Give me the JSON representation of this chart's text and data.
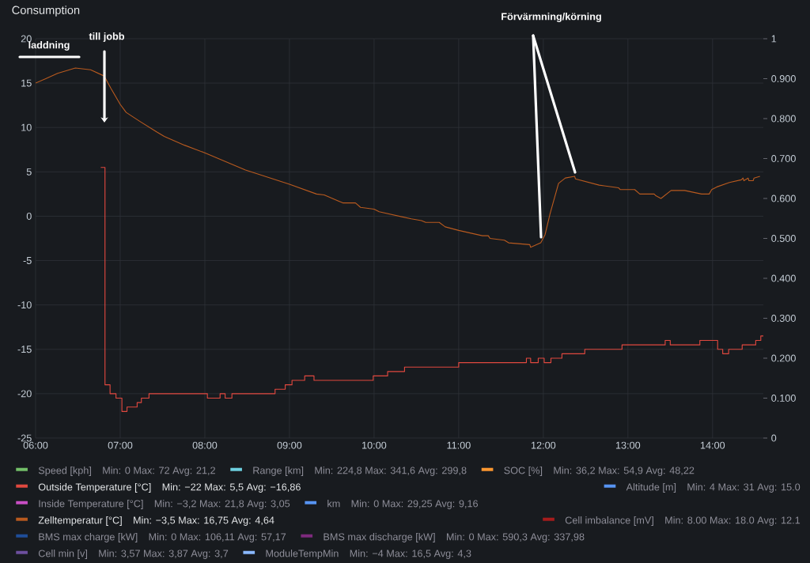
{
  "chart_data": {
    "type": "line",
    "title": "Consumption",
    "xlim": [
      6,
      14.6
    ],
    "xticks": [
      {
        "value": 6,
        "label": "06:00"
      },
      {
        "value": 7,
        "label": "07:00"
      },
      {
        "value": 8,
        "label": "08:00"
      },
      {
        "value": 9,
        "label": "09:00"
      },
      {
        "value": 10,
        "label": "10:00"
      },
      {
        "value": 11,
        "label": "11:00"
      },
      {
        "value": 12,
        "label": "12:00"
      },
      {
        "value": 13,
        "label": "13:00"
      },
      {
        "value": 14,
        "label": "14:00"
      }
    ],
    "ylim": [
      -25,
      20
    ],
    "yticks": [
      -25,
      -20,
      -15,
      -10,
      -5,
      0,
      5,
      10,
      15,
      20
    ],
    "y2lim": [
      0,
      1
    ],
    "y2ticks": [
      0,
      {
        "value": 0.1,
        "label": "0.100"
      },
      {
        "value": 0.2,
        "label": "0.200"
      },
      {
        "value": 0.3,
        "label": "0.300"
      },
      {
        "value": 0.4,
        "label": "0.400"
      },
      {
        "value": 0.5,
        "label": "0.500"
      },
      {
        "value": 0.6,
        "label": "0.600"
      },
      {
        "value": 0.7,
        "label": "0.700"
      },
      {
        "value": 0.8,
        "label": "0.800"
      },
      {
        "value": 0.9,
        "label": "0.900"
      },
      1
    ],
    "grid": true,
    "legend": "bottom",
    "series": [
      {
        "name": "Speed [kph]",
        "color": "#73bf69"
      },
      {
        "name": "Range [km]",
        "color": "#6ed0e0"
      },
      {
        "name": "SOC [%]",
        "color": "#ff9830"
      },
      {
        "name": "Outside Temperature [°C]",
        "color": "#e0483f",
        "type": "step",
        "x": [
          6.77,
          6.82,
          6.88,
          6.95,
          7.02,
          7.08,
          7.2,
          7.25,
          7.34,
          8.03,
          8.18,
          8.24,
          8.32,
          8.83,
          8.95,
          9.03,
          9.18,
          9.29,
          9.99,
          10.16,
          10.36,
          11.0,
          11.8,
          11.85,
          11.94,
          12.01,
          12.09,
          12.22,
          12.49,
          12.93,
          13.44,
          13.5,
          13.85,
          14.06,
          14.12,
          14.19,
          14.35,
          14.51,
          14.57,
          14.6
        ],
        "values": [
          5.5,
          -19,
          -20,
          -20.5,
          -22,
          -21.5,
          -21,
          -20.5,
          -20,
          -20.5,
          -20,
          -20.5,
          -20,
          -19.5,
          -19,
          -18.5,
          -18,
          -18.5,
          -18,
          -17.5,
          -17,
          -16.5,
          -16,
          -16.5,
          -16,
          -16.5,
          -16,
          -15.5,
          -15,
          -14.5,
          -14,
          -14.5,
          -14,
          -15,
          -15.5,
          -15,
          -14.5,
          -14,
          -13.5,
          -13.5
        ]
      },
      {
        "name": "Altitude [m]",
        "color": "#5794f2"
      },
      {
        "name": "Inside Temperature [°C]",
        "color": "#c94fc5"
      },
      {
        "name": "km",
        "color": "#5794f2"
      },
      {
        "name": "Zelltemperatur [°C]",
        "color": "#b85a1f",
        "x": [
          6.0,
          6.12,
          6.26,
          6.47,
          6.65,
          6.81,
          6.89,
          7.0,
          7.07,
          7.23,
          7.43,
          7.52,
          7.76,
          8.01,
          8.48,
          9.0,
          9.32,
          9.41,
          9.63,
          9.78,
          9.84,
          10.0,
          10.06,
          10.44,
          10.56,
          10.61,
          10.77,
          10.84,
          11.0,
          11.28,
          11.35,
          11.37,
          11.54,
          11.59,
          11.84,
          11.85,
          11.97,
          12.02,
          12.08,
          12.18,
          12.26,
          12.37,
          12.38,
          12.66,
          12.89,
          12.91,
          13.08,
          13.14,
          13.31,
          13.33,
          13.39,
          13.51,
          13.67,
          13.87,
          13.96,
          13.99,
          14.05,
          14.2,
          14.34,
          14.36,
          14.37,
          14.42,
          14.43,
          14.48,
          14.49,
          14.56
        ],
        "values": [
          15.0,
          15.5,
          16.1,
          16.7,
          16.5,
          15.8,
          14.4,
          12.6,
          11.7,
          10.7,
          9.5,
          9.0,
          8.0,
          7.1,
          5.2,
          3.6,
          2.5,
          2.4,
          1.5,
          1.5,
          1.0,
          0.8,
          0.5,
          -0.3,
          -0.5,
          -0.7,
          -0.7,
          -1.2,
          -1.6,
          -2.2,
          -2.2,
          -2.5,
          -2.7,
          -3.0,
          -3.2,
          -3.5,
          -3.0,
          -2.1,
          0.3,
          3.7,
          4.3,
          4.5,
          4.2,
          3.5,
          3.2,
          3.0,
          3.0,
          2.5,
          2.5,
          2.3,
          2.0,
          2.9,
          2.9,
          2.5,
          2.5,
          3.0,
          3.3,
          3.8,
          4.1,
          4.3,
          4.0,
          4.3,
          4.0,
          4.0,
          4.3,
          4.5
        ]
      },
      {
        "name": "Cell imbalance [mV]",
        "color": "#a51c1c"
      },
      {
        "name": "BMS max charge [kW]",
        "color": "#1f4e99"
      },
      {
        "name": "BMS max discharge [kW]",
        "color": "#7d2a7d"
      },
      {
        "name": "Cell min [v]",
        "color": "#6d4f9e"
      },
      {
        "name": "ModuleTempMin",
        "color": "#8ab8ff"
      }
    ],
    "annotations": [
      "laddning",
      "till jobb",
      "Förvärmning/körning",
      "Min: 0  Max: 72  Avg: 21,2",
      "Min: 224,8  Max: 341,6  Avg: 299,8",
      "Min: 36,2  Max: 54,9  Avg: 48,22",
      "Min: −22  Max: 5,5  Avg: −16,86",
      "Min: 4  Max: 31  Avg: 15.0",
      "Min: −3,2  Max: 21,8  Avg: 3,05",
      "Min: 0  Max: 29,25  Avg: 9,16",
      "Min: −3,5  Max: 16,75  Avg: 4,64",
      "Min: 8.00  Max: 18.0  Avg: 12.1",
      "Min: 0  Max: 106,11  Avg: 57,17",
      "Min: 0  Max: 590,3  Avg: 337,98",
      "Min: 3,57  Max: 3,87  Avg: 3,7",
      "Min: −4  Max: 16,5  Avg: 4,3"
    ]
  }
}
